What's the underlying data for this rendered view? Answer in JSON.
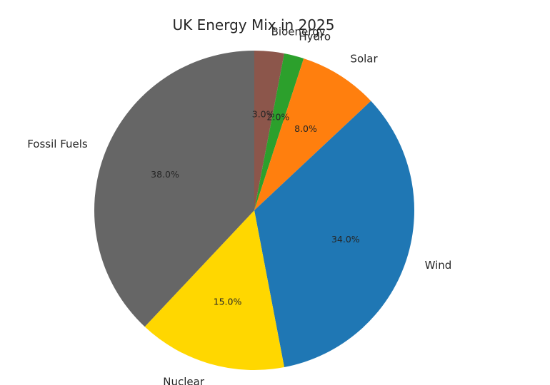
{
  "chart_data": {
    "type": "pie",
    "title": "UK Energy Mix in 2025",
    "categories": [
      "Bioenergy",
      "Hydro",
      "Solar",
      "Wind",
      "Nuclear",
      "Fossil Fuels"
    ],
    "values": [
      3.0,
      2.0,
      8.0,
      34.0,
      15.0,
      38.0
    ],
    "value_labels": [
      "3.0%",
      "2.0%",
      "8.0%",
      "34.0%",
      "15.0%",
      "38.0%"
    ],
    "colors": [
      "#8c564b",
      "#2ca02c",
      "#ff7f0e",
      "#1f77b4",
      "#ffd700",
      "#666666"
    ],
    "start_angle_deg": 90,
    "direction": "clockwise"
  }
}
